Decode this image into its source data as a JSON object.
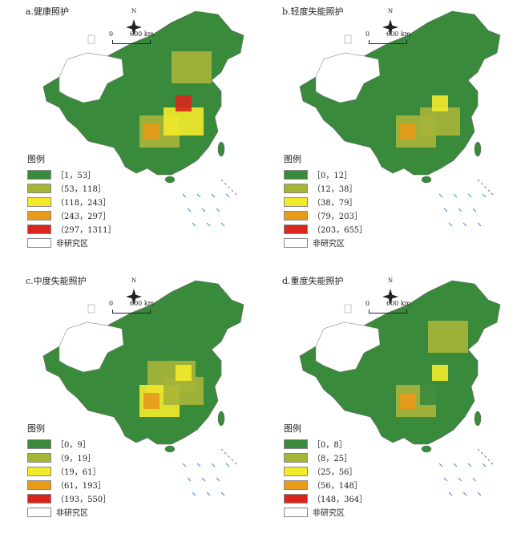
{
  "compass": {
    "label": "N"
  },
  "scale": {
    "zero": "0",
    "dist": "600 km"
  },
  "legend": {
    "title": "图例"
  },
  "colors": {
    "c1": "#3a8a3c",
    "c2": "#a7b43a",
    "c3": "#f3ea2a",
    "c4": "#e99a1b",
    "c5": "#d9251c",
    "none": "#ffffff"
  },
  "panels": [
    {
      "title": "a.健康照护",
      "classes": [
        "［1，53］",
        "（53，118］",
        "（118，243］",
        "（243，297］",
        "（297，1311］",
        "非研究区"
      ]
    },
    {
      "title": "b.轻度失能照护",
      "classes": [
        "［0，12］",
        "（12，38］",
        "（38，79］",
        "（79，203］",
        "（203，655］",
        "非研究区"
      ]
    },
    {
      "title": "c.中度失能照护",
      "classes": [
        "［0，9］",
        "（9，19］",
        "（19，61］",
        "（61，193］",
        "（193，550］",
        "非研究区"
      ]
    },
    {
      "title": "d.重度失能照护",
      "classes": [
        "［0，8］",
        "（8，25］",
        "（25，56］",
        "（56，148］",
        "（148，364］",
        "非研究区"
      ]
    }
  ]
}
